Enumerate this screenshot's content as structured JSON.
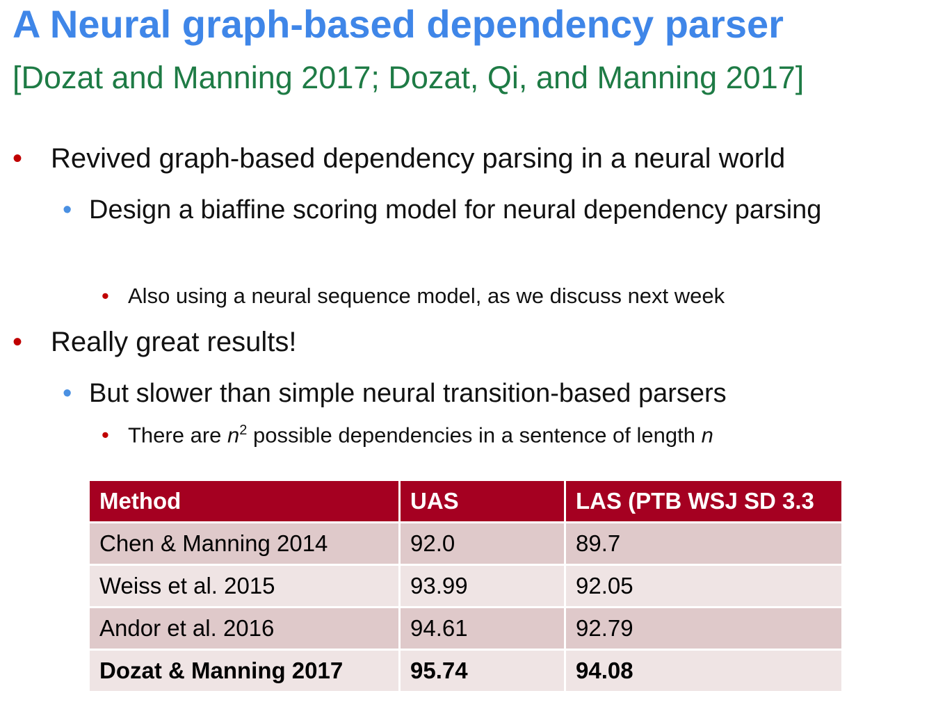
{
  "header": {
    "title": "A Neural graph-based dependency parser",
    "subtitle": "[Dozat and Manning 2017; Dozat, Qi, and Manning 2017]"
  },
  "bullets": [
    {
      "level": 1,
      "text": [
        "Revived graph-based dependency parsing in a neural world"
      ]
    },
    {
      "level": 2,
      "text": [
        "Design a biaffine scoring model for neural dependency parsing"
      ]
    },
    {
      "level": 3,
      "text": [
        "Also using a neural sequence model, as we discuss next week"
      ]
    },
    {
      "level": 1,
      "text": [
        "Really great results!"
      ]
    },
    {
      "level": 2,
      "text": [
        "But slower than simple neural transition-based parsers"
      ]
    },
    {
      "level": 3,
      "text": [
        "There are ",
        "n",
        "2",
        " possible dependencies in a sentence of length ",
        "n"
      ]
    }
  ],
  "table": {
    "columns": [
      "Method",
      "UAS",
      "LAS (PTB WSJ SD 3.3"
    ],
    "rows": [
      [
        "Chen & Manning 2014",
        "92.0",
        "89.7"
      ],
      [
        "Weiss et al. 2015",
        "93.99",
        "92.05"
      ],
      [
        "Andor et al. 2016",
        "94.61",
        "92.79"
      ],
      [
        "Dozat & Manning 2017",
        "95.74",
        "94.08"
      ]
    ]
  }
}
